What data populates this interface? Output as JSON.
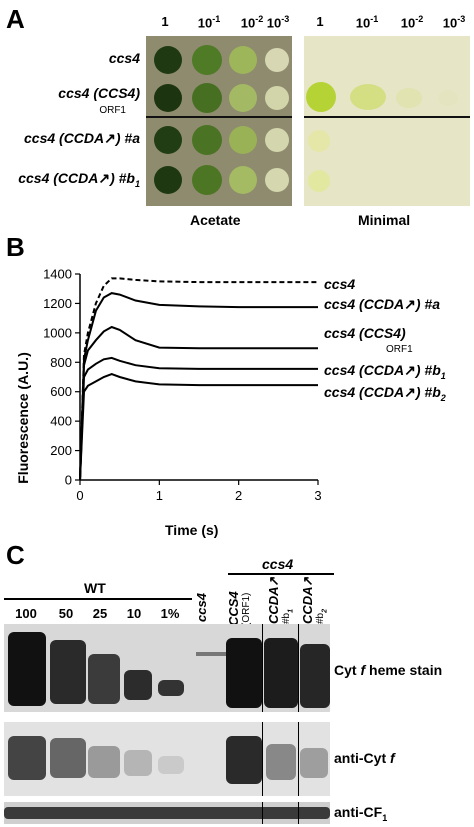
{
  "panelA": {
    "letter": "A",
    "dilutions": [
      "1",
      "10",
      "-1",
      "10",
      "-2",
      "10",
      "-3"
    ],
    "dilution_labels": [
      {
        "base": "1",
        "exp": ""
      },
      {
        "base": "10",
        "exp": "-1"
      },
      {
        "base": "10",
        "exp": "-2"
      },
      {
        "base": "10",
        "exp": "-3"
      }
    ],
    "strains": [
      {
        "name": "ccs4",
        "sub": "",
        "suffix": ""
      },
      {
        "name": "ccs4 (CCS4)",
        "sub": "ORF1",
        "suffix": ""
      },
      {
        "name": "ccs4 (CCDA",
        "sub": "",
        "suffix": ") #a"
      },
      {
        "name": "ccs4 (CCDA",
        "sub": "",
        "suffix": ") #b",
        "subscript": "1"
      }
    ],
    "media": [
      "Acetate",
      "Minimal"
    ]
  },
  "panelB": {
    "letter": "B",
    "chart_data": {
      "type": "line",
      "ylabel": "Fluorescence (A.U.)",
      "xlabel": "Time (s)",
      "xlim": [
        0,
        3
      ],
      "ylim": [
        0,
        1400
      ],
      "xticks": [
        "0",
        "1",
        "2",
        "3"
      ],
      "yticks": [
        "0",
        "200",
        "400",
        "600",
        "800",
        "1000",
        "1200",
        "1400"
      ],
      "series": [
        {
          "name": "ccs4",
          "style": "dashed",
          "x": [
            0,
            0.05,
            0.1,
            0.2,
            0.3,
            0.4,
            0.5,
            0.7,
            1,
            1.5,
            2,
            2.5,
            3
          ],
          "y": [
            0,
            850,
            1000,
            1200,
            1320,
            1370,
            1370,
            1360,
            1350,
            1345,
            1345,
            1345,
            1345
          ]
        },
        {
          "name": "ccs4 (CCDA) #a",
          "style": "solid",
          "x": [
            0,
            0.05,
            0.1,
            0.2,
            0.3,
            0.4,
            0.5,
            0.7,
            1,
            1.5,
            2,
            2.5,
            3
          ],
          "y": [
            0,
            820,
            950,
            1150,
            1240,
            1270,
            1260,
            1220,
            1190,
            1180,
            1175,
            1175,
            1175
          ]
        },
        {
          "name": "ccs4 (CCS4) ORF1",
          "style": "solid",
          "x": [
            0,
            0.05,
            0.1,
            0.2,
            0.3,
            0.4,
            0.5,
            0.7,
            1,
            1.5,
            2,
            2.5,
            3
          ],
          "y": [
            0,
            780,
            880,
            950,
            1010,
            1040,
            1020,
            950,
            900,
            895,
            895,
            895,
            895
          ]
        },
        {
          "name": "ccs4 (CCDA) #b1",
          "style": "solid",
          "x": [
            0,
            0.05,
            0.1,
            0.2,
            0.3,
            0.4,
            0.5,
            0.7,
            1,
            1.5,
            2,
            2.5,
            3
          ],
          "y": [
            0,
            700,
            750,
            790,
            820,
            830,
            810,
            780,
            760,
            755,
            755,
            755,
            755
          ]
        },
        {
          "name": "ccs4 (CCDA) #b2",
          "style": "solid",
          "x": [
            0,
            0.05,
            0.1,
            0.2,
            0.3,
            0.4,
            0.5,
            0.7,
            1,
            1.5,
            2,
            2.5,
            3
          ],
          "y": [
            0,
            600,
            640,
            670,
            700,
            720,
            700,
            670,
            650,
            645,
            645,
            645,
            645
          ]
        }
      ]
    },
    "legend": [
      {
        "name": "ccs4",
        "sub": "",
        "suffix": ""
      },
      {
        "name": "ccs4 (CCDA",
        "sub": "",
        "suffix": ") #a"
      },
      {
        "name": "ccs4 (CCS4)",
        "sub": "ORF1",
        "suffix": ""
      },
      {
        "name": "ccs4 (CCDA",
        "sub": "",
        "suffix": ") #b",
        "subscript": "1"
      },
      {
        "name": "ccs4 (CCDA",
        "sub": "",
        "suffix": ") #b",
        "subscript": "2"
      }
    ]
  },
  "panelC": {
    "letter": "C",
    "group_ccs4": "ccs4",
    "group_wt": "WT",
    "wt_lanes": [
      "100",
      "50",
      "25",
      "10",
      "1%"
    ],
    "lane_ccs4": "ccs4",
    "lane_ccs4_complemented": {
      "name": "CCS4",
      "sub": "(ORF1)"
    },
    "lane_ccda_b1": {
      "name": "CCDA",
      "sub": "#b",
      "subscript": "1"
    },
    "lane_ccda_b2": {
      "name": "CCDA",
      "sub": "#b",
      "subscript": "2"
    },
    "rows": [
      {
        "label_pre": "Cyt ",
        "label_ital": "f",
        "label_post": " heme stain"
      },
      {
        "label_pre": "anti-Cyt ",
        "label_ital": "f",
        "label_post": ""
      },
      {
        "label_pre": "anti-CF",
        "label_ital": "",
        "label_post": "",
        "subscript": "1"
      }
    ]
  }
}
